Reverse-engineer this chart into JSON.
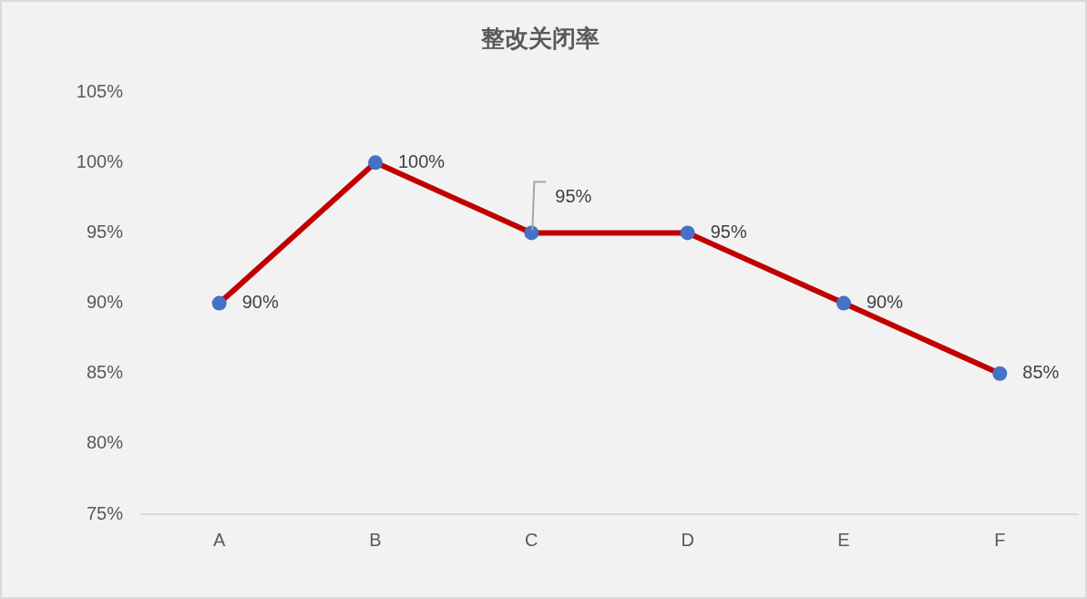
{
  "chart_data": {
    "type": "line",
    "title": "整改关闭率",
    "categories": [
      "A",
      "B",
      "C",
      "D",
      "E",
      "F"
    ],
    "values": [
      90,
      100,
      95,
      95,
      90,
      85
    ],
    "color": "#c00000",
    "colors": [
      "#4472c4",
      "#4472c4",
      "#4472c4",
      "#4472c4",
      "#4472c4",
      "#4472c4"
    ],
    "value_labels": [
      "90%",
      "100%",
      "95%",
      "95%",
      "90%",
      "85%"
    ],
    "ylim": [
      75,
      105
    ],
    "yticks": [
      {
        "value": 75,
        "label": "75%"
      },
      {
        "value": 80,
        "label": "80%"
      },
      {
        "value": 85,
        "label": "85%"
      },
      {
        "value": 90,
        "label": "90%"
      },
      {
        "value": 95,
        "label": "95%"
      },
      {
        "value": 100,
        "label": "100%"
      },
      {
        "value": 105,
        "label": "105%"
      }
    ],
    "marker": "circle",
    "line_style": "solid",
    "legend": false,
    "grid": false
  }
}
